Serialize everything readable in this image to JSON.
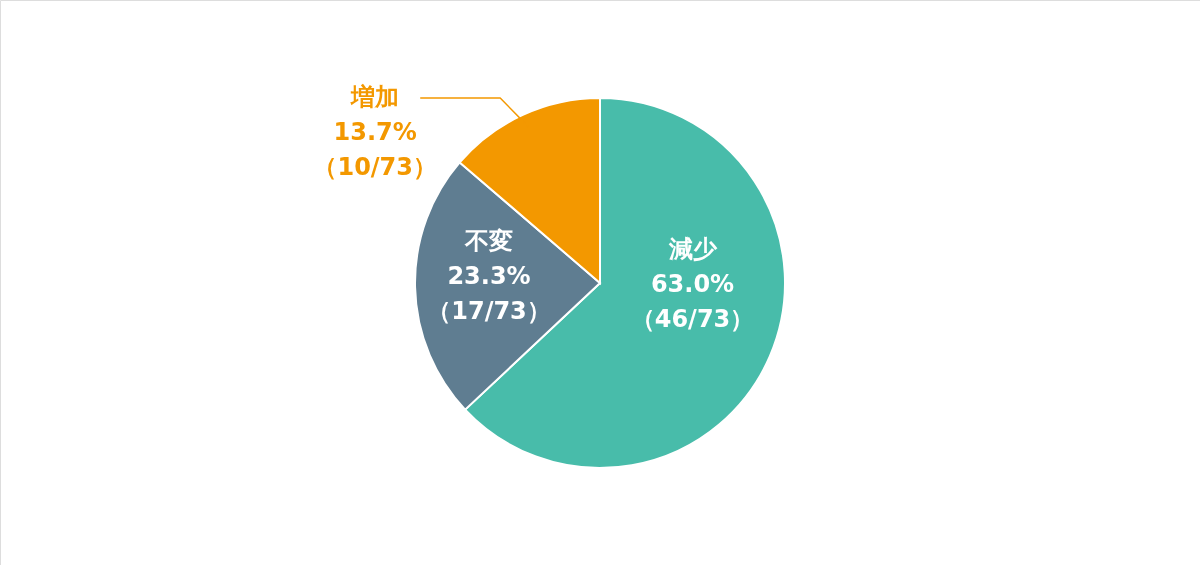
{
  "chart_data": {
    "type": "pie",
    "categories": [
      "減少",
      "不変",
      "増加"
    ],
    "values": [
      63.0,
      23.3,
      13.7
    ],
    "colors": [
      "#48bcaa",
      "#5f7d91",
      "#f39800"
    ],
    "value_labels": [
      "63.0%\n（46/73）",
      "23.3%\n（17/73）",
      "13.7%\n（10/73）"
    ]
  }
}
